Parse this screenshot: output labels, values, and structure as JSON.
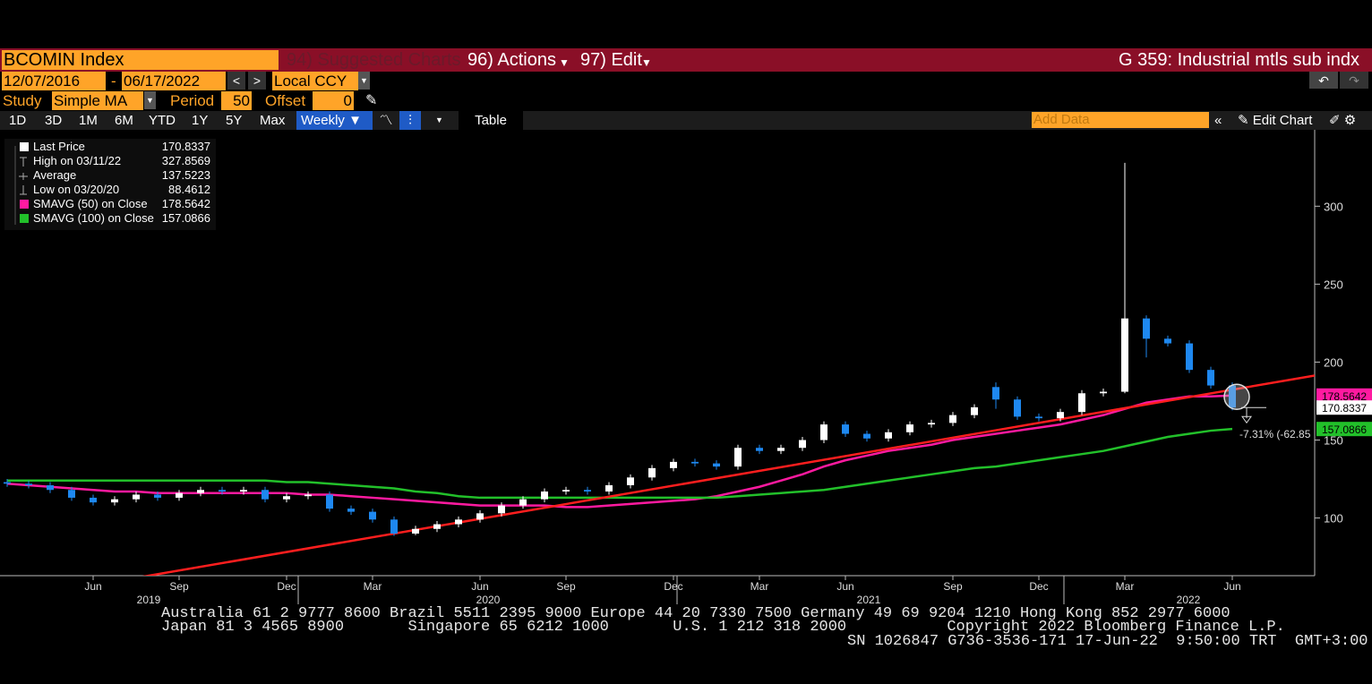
{
  "toolbar": {
    "security": "BCOMIN Index",
    "menu": [
      "94) Suggested Charts",
      "96) Actions",
      "97) Edit"
    ],
    "screen_title": "G 359: Industrial mtls sub indx",
    "date_from": "12/07/2016",
    "date_separator": "-",
    "date_to": "06/17/2022",
    "currency": "Local CCY",
    "study_label": "Study",
    "study": "Simple MA",
    "period_label": "Period",
    "period": "50",
    "offset_label": "Offset",
    "offset": "0",
    "ranges": [
      "1D",
      "3D",
      "1M",
      "6M",
      "YTD",
      "1Y",
      "5Y",
      "Max"
    ],
    "frequency": "Weekly",
    "table": "Table",
    "add_data": "Add Data",
    "edit_chart": "Edit Chart"
  },
  "chart_data": {
    "type": "candlestick",
    "categories": [
      null,
      null,
      null,
      null,
      "Jun",
      null,
      null,
      null,
      "Sep",
      null,
      null,
      null,
      null,
      "Dec",
      null,
      null,
      null,
      "Mar",
      null,
      null,
      null,
      null,
      "Jun",
      null,
      null,
      null,
      "Sep",
      null,
      null,
      null,
      null,
      "Dec",
      null,
      null,
      null,
      "Mar",
      null,
      null,
      null,
      "Jun",
      null,
      null,
      null,
      null,
      "Sep",
      null,
      null,
      null,
      "Dec",
      null,
      null,
      null,
      "Mar",
      null,
      null,
      null,
      null,
      "Jun"
    ],
    "year_labels": [
      "2019",
      "2020",
      "2021",
      "2022"
    ],
    "open": [
      123,
      122,
      121,
      118,
      113,
      110,
      112,
      115,
      113,
      116,
      118,
      117,
      118,
      112,
      114,
      115,
      106,
      104,
      99,
      90,
      93,
      96,
      99,
      103,
      108,
      112,
      117,
      118,
      117,
      121,
      126,
      132,
      136,
      135,
      133,
      145,
      143,
      145,
      150,
      160,
      154,
      151,
      155,
      160,
      161,
      166,
      184,
      176,
      165,
      164,
      168,
      180,
      181,
      228,
      215,
      212,
      195,
      185
    ],
    "high": [
      125,
      124,
      123,
      120,
      115,
      114,
      117,
      117,
      118,
      120,
      120,
      120,
      120,
      116,
      117,
      117,
      108,
      106,
      101,
      95,
      98,
      101,
      105,
      110,
      114,
      119,
      120,
      120,
      123,
      128,
      134,
      138,
      138,
      137,
      147,
      147,
      147,
      152,
      162,
      162,
      156,
      157,
      162,
      163,
      168,
      173,
      187,
      178,
      167,
      170,
      182,
      183,
      327.8569,
      230,
      217,
      214,
      197,
      187
    ],
    "low": [
      120,
      119,
      116,
      111,
      108,
      108,
      110,
      111,
      111,
      114,
      115,
      115,
      110,
      110,
      112,
      104,
      102,
      97,
      88.4612,
      89,
      91,
      94,
      97,
      101,
      106,
      110,
      115,
      115,
      115,
      119,
      124,
      130,
      133,
      131,
      131,
      141,
      141,
      143,
      148,
      152,
      149,
      149,
      153,
      158,
      159,
      164,
      170,
      163,
      162,
      162,
      166,
      178,
      180,
      203,
      210,
      193,
      183,
      169
    ],
    "close": [
      122,
      121,
      118,
      113,
      110,
      112,
      115,
      113,
      116,
      118,
      117,
      118,
      112,
      114,
      115,
      106,
      104,
      99,
      90,
      93,
      96,
      99,
      103,
      108,
      112,
      117,
      118,
      117,
      121,
      126,
      132,
      136,
      135,
      133,
      145,
      143,
      145,
      150,
      160,
      154,
      151,
      155,
      160,
      161,
      166,
      171,
      176,
      165,
      164,
      168,
      180,
      181,
      228,
      215,
      212,
      195,
      185,
      170.8337
    ],
    "up_color": "#ffffff",
    "down_color": "#1e88f0",
    "series": [
      {
        "name": "SMAVG (50)  on Close",
        "color": "#ff1aa0",
        "values": [
          122,
          121,
          120,
          119,
          118,
          117,
          117,
          116,
          116,
          116,
          116,
          116,
          116,
          116,
          115,
          115,
          114,
          113,
          112,
          111,
          110,
          109,
          108,
          108,
          108,
          108,
          107,
          107,
          108,
          109,
          110,
          111,
          112,
          114,
          117,
          120,
          124,
          128,
          133,
          137,
          140,
          143,
          145,
          147,
          150,
          152,
          154,
          156,
          158,
          160,
          163,
          166,
          170,
          174,
          176,
          178,
          178,
          178.5642
        ]
      },
      {
        "name": "SMAVG (100)  on Close",
        "color": "#22c02a",
        "values": [
          124,
          124,
          124,
          124,
          124,
          124,
          124,
          124,
          124,
          124,
          124,
          124,
          124,
          123,
          123,
          122,
          121,
          120,
          119,
          117,
          116,
          114,
          113,
          113,
          113,
          113,
          113,
          113,
          113,
          113,
          113,
          113,
          113,
          113,
          114,
          115,
          116,
          117,
          118,
          120,
          122,
          124,
          126,
          128,
          130,
          132,
          133,
          135,
          137,
          139,
          141,
          143,
          146,
          149,
          152,
          154,
          156,
          157.0866
        ]
      }
    ],
    "trendline": {
      "color": "#ff1e1e",
      "values": [
        47.4,
        182.3
      ]
    },
    "legend": [
      {
        "name": "Last Price",
        "value": 170.8337
      },
      {
        "name": "High on 03/11/22",
        "value": 327.8569
      },
      {
        "name": "Average",
        "value": 137.5223
      },
      {
        "name": "Low on 03/20/20",
        "value": 88.4612
      },
      {
        "value": 178.5642
      },
      {
        "value": 157.0866
      }
    ],
    "change_annotation": "-7.31% (-62.85",
    "ylim": [
      63,
      349
    ],
    "yticks": [
      100,
      150,
      200,
      250,
      300
    ]
  },
  "footer": [
    "Australia 61 2 9777 8600 Brazil 5511 2395 9000 Europe 44 20 7330 7500 Germany 49 69 9204 1210 Hong Kong 852 2977 6000",
    "Japan 81 3 4565 8900       Singapore 65 6212 1000       U.S. 1 212 318 2000           Copyright 2022 Bloomberg Finance L.P.",
    "SN 1026847 G736-3536-171 17-Jun-22  9:50:00 TRT  GMT+3:00"
  ]
}
